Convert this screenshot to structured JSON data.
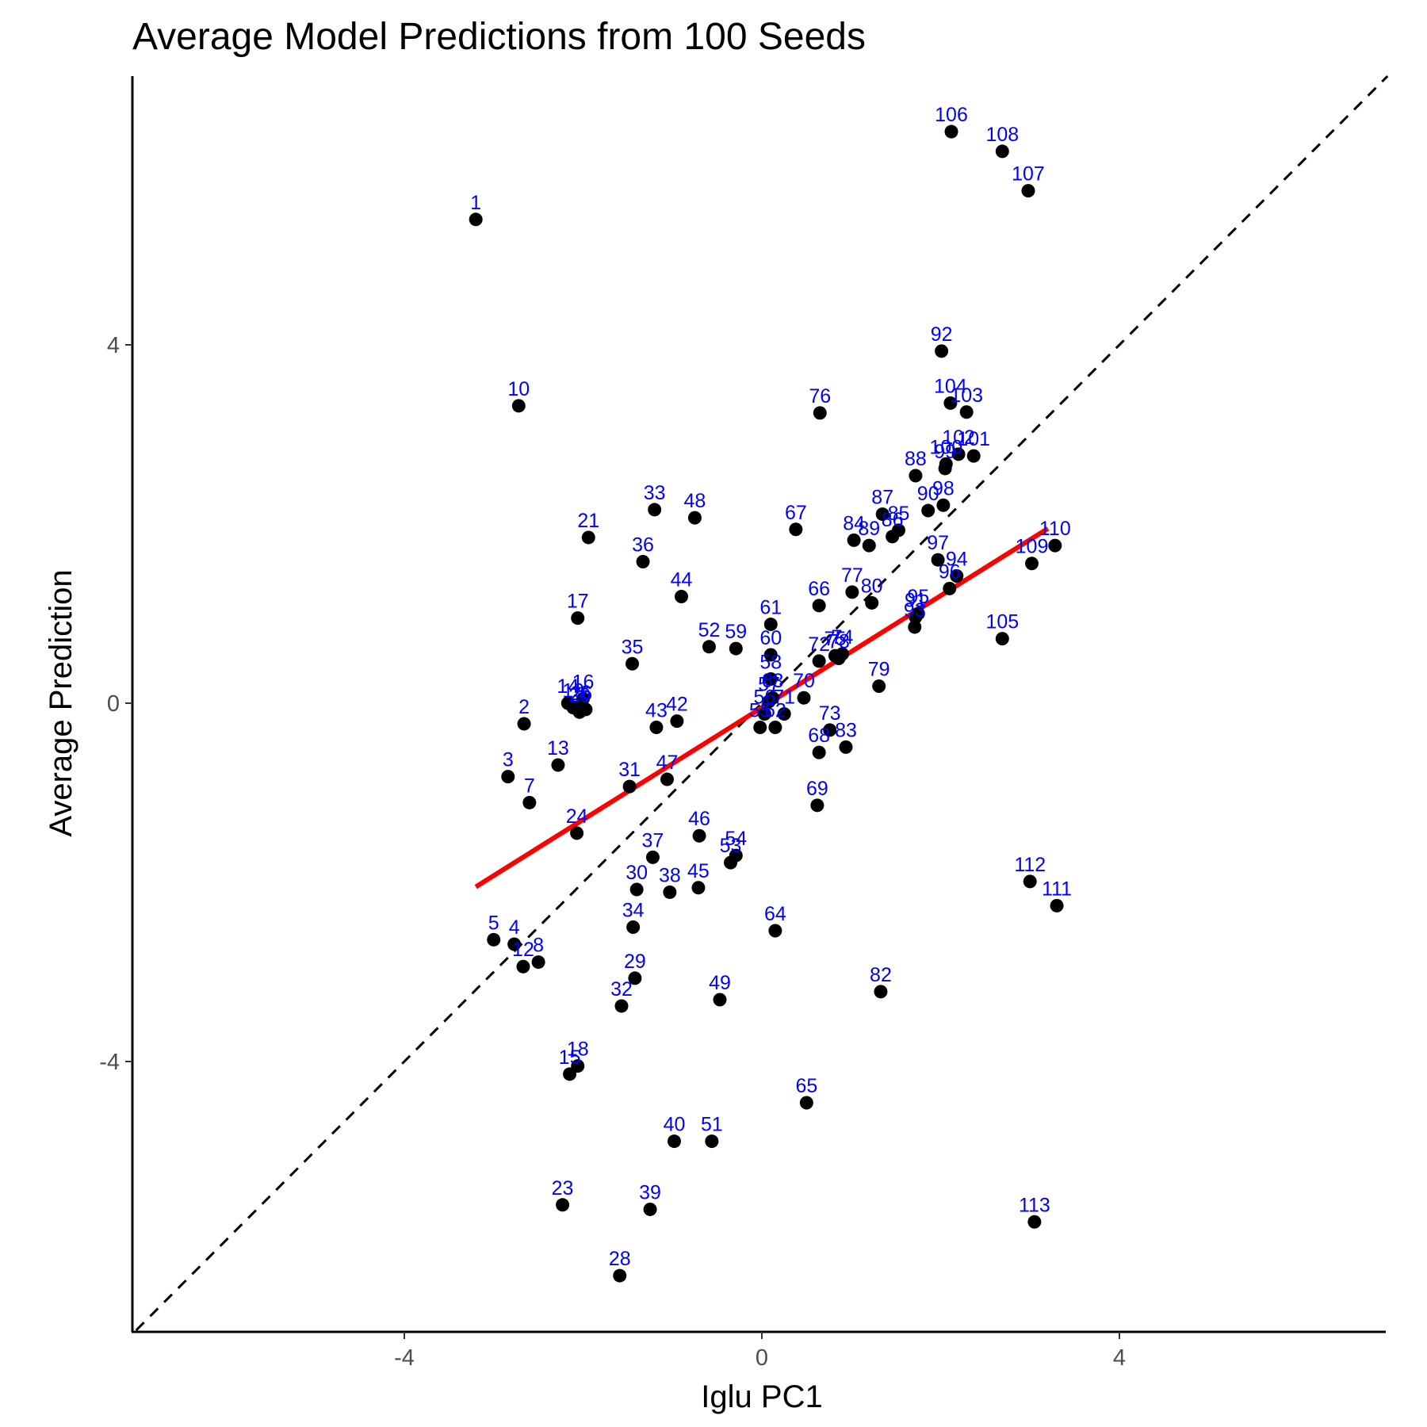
{
  "chart_data": {
    "type": "scatter",
    "title": "Average Model Predictions from 100 Seeds",
    "xlabel": "Iglu PC1",
    "ylabel": "Average Prediction",
    "xlim": [
      -7.0,
      7.0
    ],
    "ylim": [
      -6.9,
      7.0
    ],
    "xticks": [
      -4,
      0,
      4
    ],
    "yticks": [
      -4,
      0,
      4
    ],
    "xtick_labels": [
      "-4",
      "0",
      "4"
    ],
    "ytick_labels": [
      "-4",
      "0",
      "4"
    ],
    "grid": false,
    "legend": "none",
    "colors": {
      "points": "#000000",
      "labels": "#0000ff",
      "fit_line": "#ff0000",
      "identity_line": "#000000",
      "axes": "#000000",
      "ticks": "#4d4d4d"
    },
    "identity_line": {
      "slope": 1,
      "intercept": 0,
      "style": "dashed"
    },
    "fit_line": {
      "x": [
        -3.2,
        3.2
      ],
      "y": [
        -2.05,
        1.95
      ],
      "style": "solid"
    },
    "points": [
      {
        "label": "1",
        "x": -3.2,
        "y": 5.4
      },
      {
        "label": "2",
        "x": -2.66,
        "y": -0.23
      },
      {
        "label": "3",
        "x": -2.84,
        "y": -0.82
      },
      {
        "label": "4",
        "x": -2.77,
        "y": -2.69
      },
      {
        "label": "5",
        "x": -3.0,
        "y": -2.64
      },
      {
        "label": "6",
        "x": -1.97,
        "y": -0.07
      },
      {
        "label": "7",
        "x": -2.6,
        "y": -1.11
      },
      {
        "label": "8",
        "x": -2.5,
        "y": -2.89
      },
      {
        "label": "10",
        "x": -2.72,
        "y": 3.32
      },
      {
        "label": "12",
        "x": -2.67,
        "y": -2.94
      },
      {
        "label": "13",
        "x": -2.28,
        "y": -0.69
      },
      {
        "label": "14",
        "x": -2.17,
        "y": 0.0
      },
      {
        "label": "15",
        "x": -2.15,
        "y": -4.14
      },
      {
        "label": "16",
        "x": -2.0,
        "y": 0.05
      },
      {
        "label": "17",
        "x": -2.06,
        "y": 0.95
      },
      {
        "label": "18",
        "x": -2.06,
        "y": -4.05
      },
      {
        "label": "19",
        "x": -2.11,
        "y": -0.05
      },
      {
        "label": "20",
        "x": -2.04,
        "y": -0.1
      },
      {
        "label": "21",
        "x": -1.94,
        "y": 1.85
      },
      {
        "label": "23",
        "x": -2.23,
        "y": -5.6
      },
      {
        "label": "24",
        "x": -2.07,
        "y": -1.45
      },
      {
        "label": "26",
        "x": -2.02,
        "y": -0.08
      },
      {
        "label": "28",
        "x": -1.59,
        "y": -6.39
      },
      {
        "label": "29",
        "x": -1.42,
        "y": -3.07
      },
      {
        "label": "30",
        "x": -1.4,
        "y": -2.08
      },
      {
        "label": "31",
        "x": -1.48,
        "y": -0.93
      },
      {
        "label": "32",
        "x": -1.57,
        "y": -3.38
      },
      {
        "label": "33",
        "x": -1.2,
        "y": 2.16
      },
      {
        "label": "34",
        "x": -1.44,
        "y": -2.5
      },
      {
        "label": "35",
        "x": -1.45,
        "y": 0.44
      },
      {
        "label": "36",
        "x": -1.33,
        "y": 1.58
      },
      {
        "label": "37",
        "x": -1.22,
        "y": -1.72
      },
      {
        "label": "38",
        "x": -1.03,
        "y": -2.11
      },
      {
        "label": "39",
        "x": -1.25,
        "y": -5.65
      },
      {
        "label": "40",
        "x": -0.98,
        "y": -4.89
      },
      {
        "label": "42",
        "x": -0.95,
        "y": -0.2
      },
      {
        "label": "43",
        "x": -1.18,
        "y": -0.27
      },
      {
        "label": "44",
        "x": -0.9,
        "y": 1.19
      },
      {
        "label": "45",
        "x": -0.71,
        "y": -2.06
      },
      {
        "label": "46",
        "x": -0.7,
        "y": -1.48
      },
      {
        "label": "47",
        "x": -1.06,
        "y": -0.85
      },
      {
        "label": "48",
        "x": -0.75,
        "y": 2.07
      },
      {
        "label": "49",
        "x": -0.47,
        "y": -3.31
      },
      {
        "label": "51",
        "x": -0.56,
        "y": -4.89
      },
      {
        "label": "52",
        "x": -0.59,
        "y": 0.63
      },
      {
        "label": "53",
        "x": -0.35,
        "y": -1.78
      },
      {
        "label": "54",
        "x": -0.29,
        "y": -1.7
      },
      {
        "label": "55",
        "x": -0.02,
        "y": -0.27
      },
      {
        "label": "56",
        "x": 0.03,
        "y": -0.12
      },
      {
        "label": "57",
        "x": 0.08,
        "y": 0.02
      },
      {
        "label": "58",
        "x": 0.1,
        "y": 0.27
      },
      {
        "label": "59",
        "x": -0.29,
        "y": 0.61
      },
      {
        "label": "60",
        "x": 0.1,
        "y": 0.54
      },
      {
        "label": "61",
        "x": 0.1,
        "y": 0.88
      },
      {
        "label": "62",
        "x": 0.15,
        "y": -0.27
      },
      {
        "label": "63",
        "x": 0.12,
        "y": 0.06
      },
      {
        "label": "64",
        "x": 0.15,
        "y": -2.54
      },
      {
        "label": "65",
        "x": 0.5,
        "y": -4.46
      },
      {
        "label": "66",
        "x": 0.64,
        "y": 1.09
      },
      {
        "label": "67",
        "x": 0.38,
        "y": 1.94
      },
      {
        "label": "68",
        "x": 0.64,
        "y": -0.55
      },
      {
        "label": "69",
        "x": 0.62,
        "y": -1.14
      },
      {
        "label": "70",
        "x": 0.47,
        "y": 0.06
      },
      {
        "label": "71",
        "x": 0.25,
        "y": -0.12
      },
      {
        "label": "72",
        "x": 0.64,
        "y": 0.47
      },
      {
        "label": "73",
        "x": 0.76,
        "y": -0.3
      },
      {
        "label": "74",
        "x": 0.9,
        "y": 0.55
      },
      {
        "label": "75",
        "x": 0.82,
        "y": 0.53
      },
      {
        "label": "76",
        "x": 0.65,
        "y": 3.24
      },
      {
        "label": "77",
        "x": 1.01,
        "y": 1.24
      },
      {
        "label": "78",
        "x": 0.86,
        "y": 0.5
      },
      {
        "label": "79",
        "x": 1.31,
        "y": 0.19
      },
      {
        "label": "80",
        "x": 1.23,
        "y": 1.12
      },
      {
        "label": "82",
        "x": 1.33,
        "y": -3.22
      },
      {
        "label": "83",
        "x": 0.94,
        "y": -0.49
      },
      {
        "label": "84",
        "x": 1.03,
        "y": 1.82
      },
      {
        "label": "85",
        "x": 1.53,
        "y": 1.93
      },
      {
        "label": "86",
        "x": 1.46,
        "y": 1.86
      },
      {
        "label": "87",
        "x": 1.35,
        "y": 2.11
      },
      {
        "label": "88",
        "x": 1.72,
        "y": 2.54
      },
      {
        "label": "89",
        "x": 1.2,
        "y": 1.76
      },
      {
        "label": "90",
        "x": 1.86,
        "y": 2.15
      },
      {
        "label": "91",
        "x": 1.72,
        "y": 0.96
      },
      {
        "label": "92",
        "x": 2.01,
        "y": 3.93
      },
      {
        "label": "93",
        "x": 1.71,
        "y": 0.85
      },
      {
        "label": "94",
        "x": 2.18,
        "y": 1.42
      },
      {
        "label": "95",
        "x": 1.75,
        "y": 1.0
      },
      {
        "label": "96",
        "x": 2.1,
        "y": 1.28
      },
      {
        "label": "97",
        "x": 1.97,
        "y": 1.6
      },
      {
        "label": "98",
        "x": 2.03,
        "y": 2.21
      },
      {
        "label": "99",
        "x": 2.05,
        "y": 2.62
      },
      {
        "label": "100",
        "x": 2.06,
        "y": 2.67
      },
      {
        "label": "101",
        "x": 2.37,
        "y": 2.76
      },
      {
        "label": "102",
        "x": 2.2,
        "y": 2.78
      },
      {
        "label": "103",
        "x": 2.29,
        "y": 3.25
      },
      {
        "label": "104",
        "x": 2.11,
        "y": 3.35
      },
      {
        "label": "105",
        "x": 2.69,
        "y": 0.72
      },
      {
        "label": "106",
        "x": 2.12,
        "y": 6.38
      },
      {
        "label": "107",
        "x": 2.98,
        "y": 5.72
      },
      {
        "label": "108",
        "x": 2.69,
        "y": 6.16
      },
      {
        "label": "109",
        "x": 3.02,
        "y": 1.56
      },
      {
        "label": "110",
        "x": 3.28,
        "y": 1.76
      },
      {
        "label": "111",
        "x": 3.3,
        "y": -2.26
      },
      {
        "label": "112",
        "x": 3.0,
        "y": -1.99
      },
      {
        "label": "113",
        "x": 3.05,
        "y": -5.79
      }
    ]
  }
}
